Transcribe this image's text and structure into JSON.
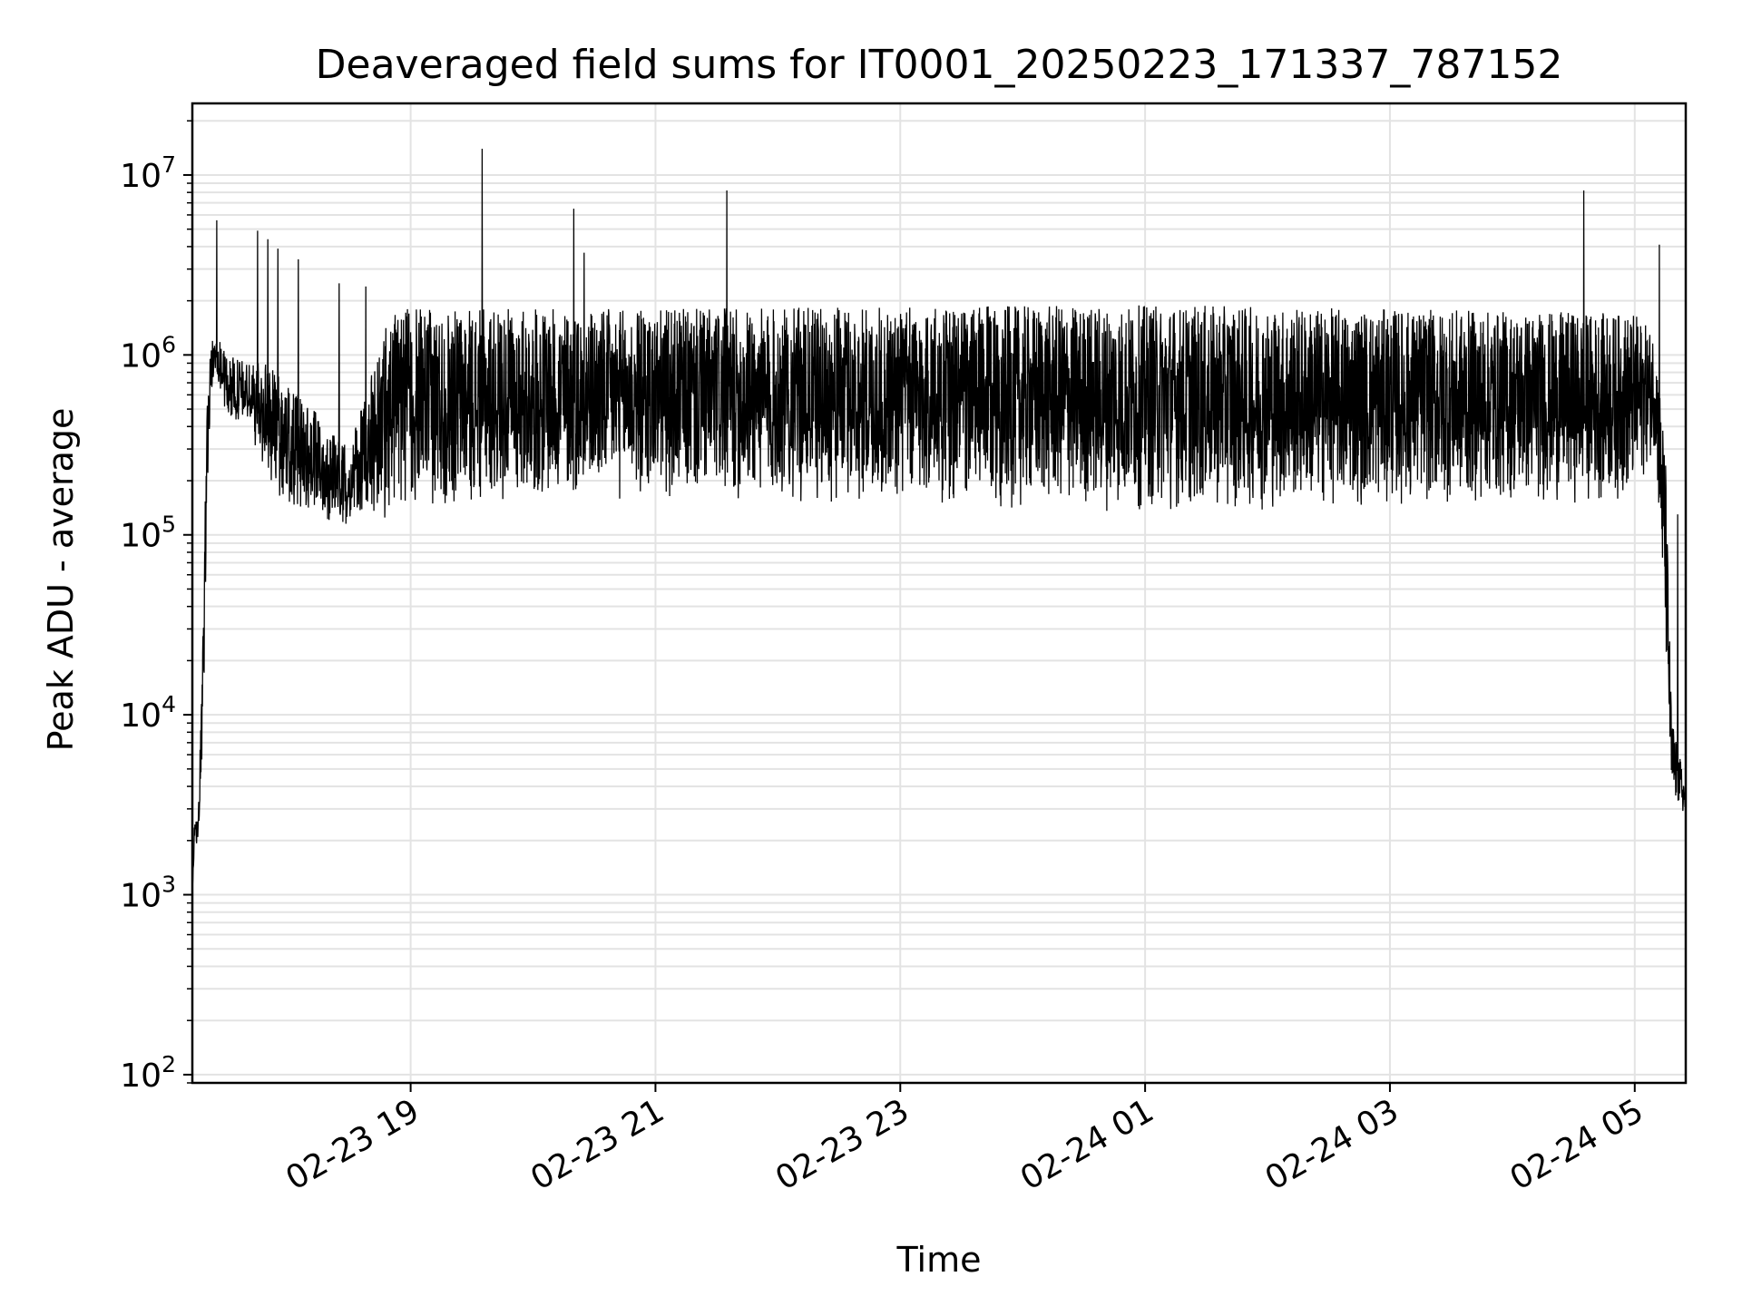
{
  "chart_data": {
    "type": "line",
    "title": "Deaveraged field sums for IT0001_20250223_171337_787152",
    "xlabel": "Time",
    "ylabel": "Peak ADU - average",
    "yscale": "log",
    "xlim": [
      "2025-02-23 17:13",
      "2025-02-24 05:25"
    ],
    "ylim": [
      90,
      25000000
    ],
    "grid": true,
    "grid_color": "#e3e3e3",
    "line_color": "#000000",
    "x_ticks": [
      {
        "label": "02-23 19",
        "value": "2025-02-23 19:00"
      },
      {
        "label": "02-23 21",
        "value": "2025-02-23 21:00"
      },
      {
        "label": "02-23 23",
        "value": "2025-02-23 23:00"
      },
      {
        "label": "02-24 01",
        "value": "2025-02-24 01:00"
      },
      {
        "label": "02-24 03",
        "value": "2025-02-24 03:00"
      },
      {
        "label": "02-24 05",
        "value": "2025-02-24 05:00"
      }
    ],
    "y_ticks": [
      {
        "base": "10",
        "exp": "2",
        "value": 100
      },
      {
        "base": "10",
        "exp": "3",
        "value": 1000
      },
      {
        "base": "10",
        "exp": "4",
        "value": 10000
      },
      {
        "base": "10",
        "exp": "5",
        "value": 100000
      },
      {
        "base": "10",
        "exp": "6",
        "value": 1000000
      },
      {
        "base": "10",
        "exp": "7",
        "value": 10000000
      }
    ],
    "series": [
      {
        "envelope": [
          {
            "x": "2025-02-23 17:13",
            "low": 1000,
            "high": 1000
          },
          {
            "x": "2025-02-23 17:14",
            "low": 1800,
            "high": 2400
          },
          {
            "x": "2025-02-23 17:16",
            "low": 2000,
            "high": 3000
          },
          {
            "x": "2025-02-23 17:18",
            "low": 5000,
            "high": 20000
          },
          {
            "x": "2025-02-23 17:20",
            "low": 100000,
            "high": 500000
          },
          {
            "x": "2025-02-23 17:22",
            "low": 500000,
            "high": 1200000
          },
          {
            "x": "2025-02-23 17:25",
            "low": 800000,
            "high": 1300000
          },
          {
            "x": "2025-02-23 17:30",
            "low": 400000,
            "high": 1000000
          },
          {
            "x": "2025-02-23 17:40",
            "low": 400000,
            "high": 900000
          },
          {
            "x": "2025-02-23 17:50",
            "low": 200000,
            "high": 900000
          },
          {
            "x": "2025-02-23 18:00",
            "low": 130000,
            "high": 700000
          },
          {
            "x": "2025-02-23 18:30",
            "low": 110000,
            "high": 300000
          },
          {
            "x": "2025-02-23 18:50",
            "low": 120000,
            "high": 1800000
          },
          {
            "x": "2025-02-23 19:30",
            "low": 140000,
            "high": 1800000
          },
          {
            "x": "2025-02-23 19:40",
            "low": 150000,
            "high": 1800000
          },
          {
            "x": "2025-02-23 21:00",
            "low": 150000,
            "high": 1800000
          },
          {
            "x": "2025-02-24 01:00",
            "low": 130000,
            "high": 1900000
          },
          {
            "x": "2025-02-24 05:00",
            "low": 150000,
            "high": 1700000
          },
          {
            "x": "2025-02-24 05:10",
            "low": 300000,
            "high": 1300000
          },
          {
            "x": "2025-02-24 05:15",
            "low": 20000,
            "high": 300000
          },
          {
            "x": "2025-02-24 05:18",
            "low": 3000,
            "high": 10000
          },
          {
            "x": "2025-02-24 05:25",
            "low": 2800,
            "high": 4000
          }
        ],
        "spikes": [
          {
            "x": "2025-02-23 17:25",
            "y": 5600000
          },
          {
            "x": "2025-02-23 17:45",
            "y": 4900000
          },
          {
            "x": "2025-02-23 17:50",
            "y": 4400000
          },
          {
            "x": "2025-02-23 17:55",
            "y": 3900000
          },
          {
            "x": "2025-02-23 18:05",
            "y": 3400000
          },
          {
            "x": "2025-02-23 18:25",
            "y": 2500000
          },
          {
            "x": "2025-02-23 18:38",
            "y": 2400000
          },
          {
            "x": "2025-02-23 19:35",
            "y": 14000000
          },
          {
            "x": "2025-02-23 20:20",
            "y": 6500000
          },
          {
            "x": "2025-02-23 20:25",
            "y": 3700000
          },
          {
            "x": "2025-02-23 21:35",
            "y": 8200000
          },
          {
            "x": "2025-02-24 04:35",
            "y": 8200000
          },
          {
            "x": "2025-02-24 05:12",
            "y": 4100000
          },
          {
            "x": "2025-02-24 05:21",
            "y": 130000
          }
        ]
      }
    ]
  }
}
